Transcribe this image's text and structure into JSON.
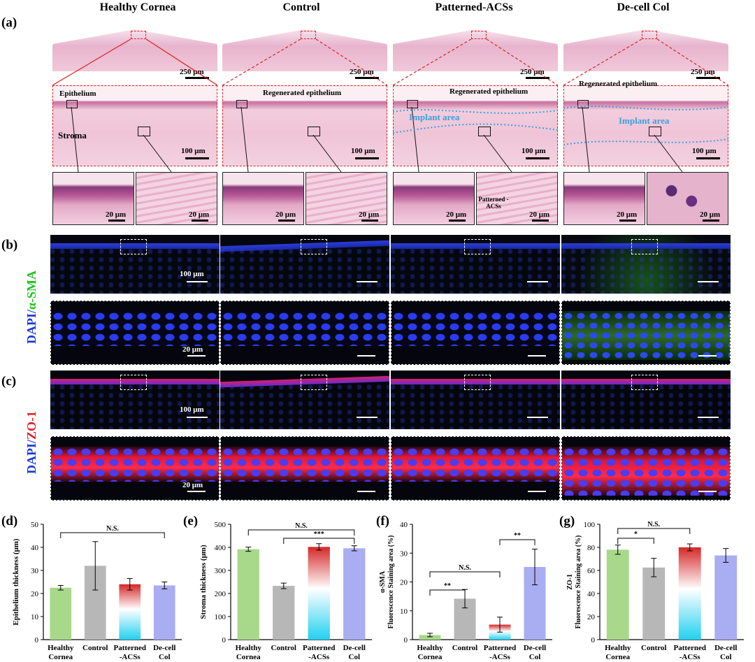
{
  "column_titles": [
    "Healthy Cornea",
    "Control",
    "Patterned-ACSs",
    "De-cell Col"
  ],
  "panel_letters": {
    "a": "(a)",
    "b": "(b)",
    "c": "(c)",
    "d": "(d)",
    "e": "(e)",
    "f": "(f)",
    "g": "(g)"
  },
  "panel_a": {
    "scale_top": "250 μm",
    "scale_mid": "100 μm",
    "scale_inset": "20 μm",
    "labels": {
      "epithelium": "Epithelium",
      "stroma": "Stroma",
      "regenerated": "Regenerated epithelium",
      "implant": "Implant area",
      "patterned_acss": "Patterned -ACSs"
    }
  },
  "panel_b": {
    "side_label_blue": "DAPI/",
    "side_label_color": "α-SMA",
    "scale_big": "100 μm",
    "scale_small": "20 μm"
  },
  "panel_c": {
    "side_label_blue": "DAPI/",
    "side_label_color": "ZO-1",
    "scale_big": "100 μm",
    "scale_small": "20 μm"
  },
  "colors": {
    "healthy": "#a8d88a",
    "control": "#b7b7b7",
    "patterned_top": "#d62828",
    "patterned_bottom": "#22d0f0",
    "decell": "#a9adf2"
  },
  "chart_data": [
    {
      "id": "d",
      "type": "bar",
      "categories": [
        "Healthy Cornea",
        "Control",
        "Patterned -ACSs",
        "De-cell Col"
      ],
      "values": [
        22.5,
        32,
        24,
        23.5
      ],
      "errors": [
        1,
        10.5,
        2.5,
        1.5
      ],
      "ylabel": "Epithelium thickness (μm)",
      "ylim": [
        0,
        50
      ],
      "yticks": [
        0,
        10,
        20,
        30,
        40,
        50
      ],
      "annotations": [
        {
          "text": "N.S.",
          "from": 0,
          "to": 3
        }
      ]
    },
    {
      "id": "e",
      "type": "bar",
      "categories": [
        "Healthy Cornea",
        "Control",
        "Patterned -ACSs",
        "De-cell Col"
      ],
      "values": [
        392,
        233,
        402,
        396
      ],
      "errors": [
        9,
        12,
        14,
        11
      ],
      "ylabel": "Stroma thickness (μm)",
      "ylim": [
        0,
        500
      ],
      "yticks": [
        0,
        100,
        200,
        300,
        400,
        500
      ],
      "annotations": [
        {
          "text": "N.S.",
          "from": 0,
          "to": 3
        },
        {
          "text": "***",
          "from": 1,
          "to": 3
        }
      ]
    },
    {
      "id": "f",
      "type": "bar",
      "categories": [
        "Healthy Cornea",
        "Control",
        "Patterned -ACSs",
        "De-cell Col"
      ],
      "values": [
        1.6,
        14.2,
        5.2,
        25.2
      ],
      "errors": [
        0.6,
        3.2,
        2.6,
        6.2
      ],
      "ylabel": "α-SMA Fluorescence Staining area (%)",
      "ylim": [
        0,
        40
      ],
      "yticks": [
        0,
        10,
        20,
        30,
        40
      ],
      "annotations": [
        {
          "text": "**",
          "from": 0,
          "to": 1
        },
        {
          "text": "N.S.",
          "from": 0,
          "to": 2
        },
        {
          "text": "**",
          "from": 2,
          "to": 3
        }
      ]
    },
    {
      "id": "g",
      "type": "bar",
      "categories": [
        "Healthy Cornea",
        "Control",
        "Patterned -ACSs",
        "De-cell Col"
      ],
      "values": [
        78,
        62.5,
        80,
        73
      ],
      "errors": [
        4,
        8,
        3,
        6
      ],
      "ylabel": "ZO-1 Fluorescence Staining area (%)",
      "ylim": [
        0,
        100
      ],
      "yticks": [
        0,
        20,
        40,
        60,
        80,
        100
      ],
      "annotations": [
        {
          "text": "*",
          "from": 0,
          "to": 1
        },
        {
          "text": "N.S.",
          "from": 0,
          "to": 2
        }
      ]
    }
  ]
}
